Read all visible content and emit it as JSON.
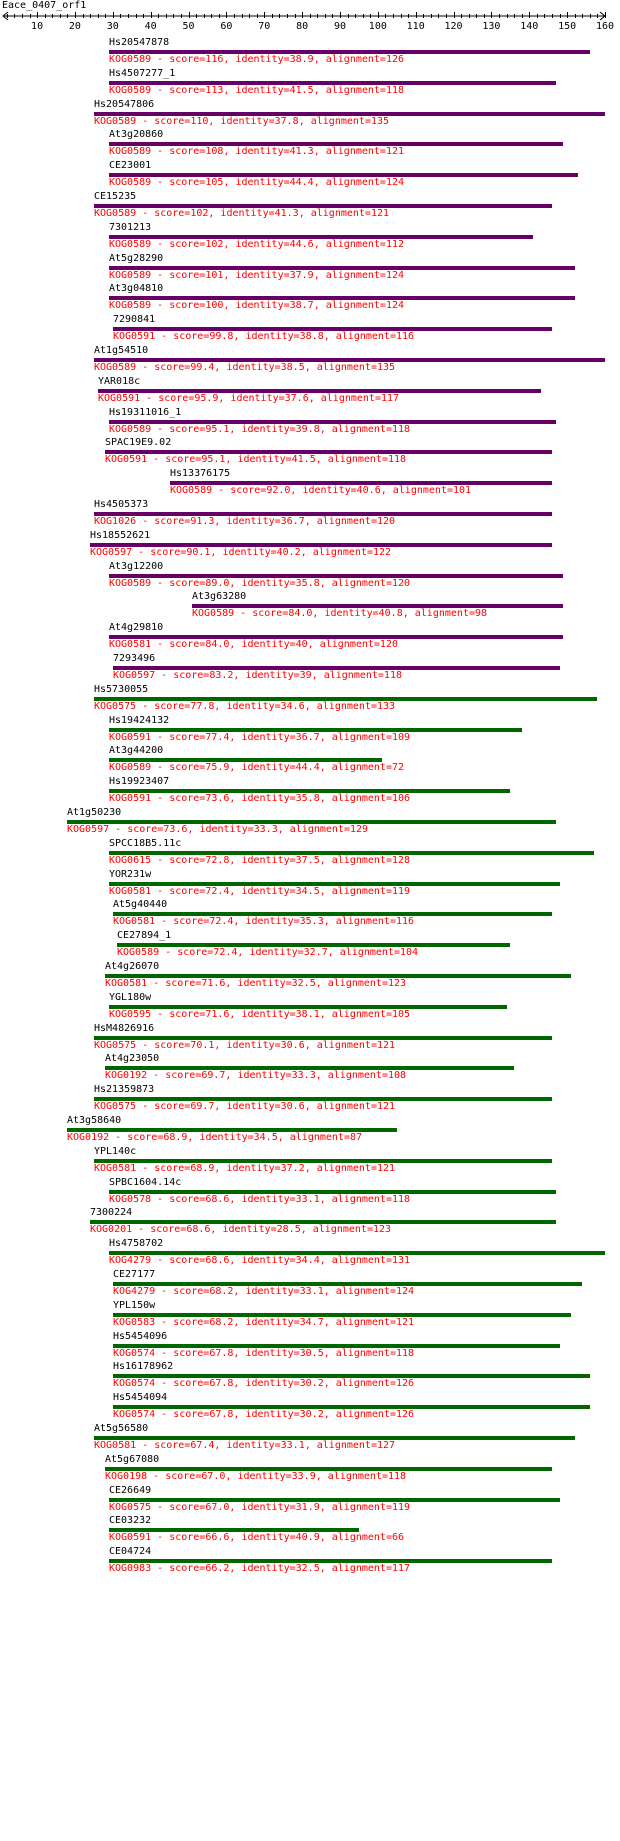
{
  "title": "Eace_0407_orf1",
  "axis": {
    "min": 1,
    "max": 160,
    "tick_labels": [
      "10",
      "20",
      "30",
      "40",
      "50",
      "60",
      "70",
      "80",
      "90",
      "100",
      "110",
      "120",
      "130",
      "140",
      "150",
      "160"
    ]
  },
  "colors": {
    "purple_bar": "#660066",
    "green_bar": "#006600",
    "info_text": "#ff0000",
    "name_text": "#000000"
  },
  "hits": [
    {
      "name": "Hs20547878",
      "start": 29,
      "end": 156,
      "color": "purple",
      "info": "KOG0589 - score=116, identity=38.9, alignment=126"
    },
    {
      "name": "Hs4507277_1",
      "start": 29,
      "end": 147,
      "color": "purple",
      "info": "KOG0589 - score=113, identity=41.5, alignment=118"
    },
    {
      "name": "Hs20547806",
      "start": 25,
      "end": 160,
      "color": "purple",
      "info": "KOG0589 - score=110, identity=37.8, alignment=135"
    },
    {
      "name": "At3g20860",
      "start": 29,
      "end": 149,
      "color": "purple",
      "info": "KOG0589 - score=108, identity=41.3, alignment=121"
    },
    {
      "name": "CE23001",
      "start": 29,
      "end": 153,
      "color": "purple",
      "info": "KOG0589 - score=105, identity=44.4, alignment=124"
    },
    {
      "name": "CE15235",
      "start": 25,
      "end": 146,
      "color": "purple",
      "info": "KOG0589 - score=102, identity=41.3, alignment=121"
    },
    {
      "name": "7301213",
      "start": 29,
      "end": 141,
      "color": "purple",
      "info": "KOG0589 - score=102, identity=44.6, alignment=112"
    },
    {
      "name": "At5g28290",
      "start": 29,
      "end": 152,
      "color": "purple",
      "info": "KOG0589 - score=101, identity=37.9, alignment=124"
    },
    {
      "name": "At3g04810",
      "start": 29,
      "end": 152,
      "color": "purple",
      "info": "KOG0589 - score=100, identity=38.7, alignment=124"
    },
    {
      "name": "7290841",
      "start": 30,
      "end": 146,
      "color": "purple",
      "info": "KOG0591 - score=99.8, identity=38.8, alignment=116"
    },
    {
      "name": "At1g54510",
      "start": 25,
      "end": 160,
      "color": "purple",
      "info": "KOG0589 - score=99.4, identity=38.5, alignment=135"
    },
    {
      "name": "YAR018c",
      "start": 26,
      "end": 143,
      "color": "purple",
      "info": "KOG0591 - score=95.9, identity=37.6, alignment=117"
    },
    {
      "name": "Hs19311016_1",
      "start": 29,
      "end": 147,
      "color": "purple",
      "info": "KOG0589 - score=95.1, identity=39.8, alignment=118"
    },
    {
      "name": "SPAC19E9.02",
      "start": 28,
      "end": 146,
      "color": "purple",
      "info": "KOG0591 - score=95.1, identity=41.5, alignment=118"
    },
    {
      "name": "Hs13376175",
      "start": 45,
      "end": 146,
      "color": "purple",
      "info": "KOG0589 - score=92.0, identity=40.6, alignment=101"
    },
    {
      "name": "Hs4505373",
      "start": 25,
      "end": 146,
      "color": "purple",
      "info": "KOG1026 - score=91.3, identity=36.7, alignment=120"
    },
    {
      "name": "Hs18552621",
      "start": 24,
      "end": 146,
      "color": "purple",
      "info": "KOG0597 - score=90.1, identity=40.2, alignment=122"
    },
    {
      "name": "At3g12200",
      "start": 29,
      "end": 149,
      "color": "purple",
      "info": "KOG0589 - score=89.0, identity=35.8, alignment=120"
    },
    {
      "name": "At3g63280",
      "start": 51,
      "end": 149,
      "color": "purple",
      "info": "KOG0589 - score=84.0, identity=40.8, alignment=98"
    },
    {
      "name": "At4g29810",
      "start": 29,
      "end": 149,
      "color": "purple",
      "info": "KOG0581 - score=84.0, identity=40, alignment=120"
    },
    {
      "name": "7293496",
      "start": 30,
      "end": 148,
      "color": "purple",
      "info": "KOG0597 - score=83.2, identity=39, alignment=118"
    },
    {
      "name": "Hs5730055",
      "start": 25,
      "end": 158,
      "color": "green",
      "info": "KOG0575 - score=77.8, identity=34.6, alignment=133"
    },
    {
      "name": "Hs19424132",
      "start": 29,
      "end": 138,
      "color": "green",
      "info": "KOG0591 - score=77.4, identity=36.7, alignment=109"
    },
    {
      "name": "At3g44200",
      "start": 29,
      "end": 101,
      "color": "green",
      "info": "KOG0589 - score=75.9, identity=44.4, alignment=72"
    },
    {
      "name": "Hs19923407",
      "start": 29,
      "end": 135,
      "color": "green",
      "info": "KOG0591 - score=73.6, identity=35.8, alignment=106"
    },
    {
      "name": "At1g50230",
      "start": 18,
      "end": 147,
      "color": "green",
      "info": "KOG0597 - score=73.6, identity=33.3, alignment=129"
    },
    {
      "name": "SPCC18B5.11c",
      "start": 29,
      "end": 157,
      "color": "green",
      "info": "KOG0615 - score=72.8, identity=37.5, alignment=128"
    },
    {
      "name": "YOR231w",
      "start": 29,
      "end": 148,
      "color": "green",
      "info": "KOG0581 - score=72.4, identity=34.5, alignment=119"
    },
    {
      "name": "At5g40440",
      "start": 30,
      "end": 146,
      "color": "green",
      "info": "KOG0581 - score=72.4, identity=35.3, alignment=116"
    },
    {
      "name": "CE27894_1",
      "start": 31,
      "end": 135,
      "color": "green",
      "info": "KOG0589 - score=72.4, identity=32.7, alignment=104"
    },
    {
      "name": "At4g26070",
      "start": 28,
      "end": 151,
      "color": "green",
      "info": "KOG0581 - score=71.6, identity=32.5, alignment=123"
    },
    {
      "name": "YGL180w",
      "start": 29,
      "end": 134,
      "color": "green",
      "info": "KOG0595 - score=71.6, identity=38.1, alignment=105"
    },
    {
      "name": "HsM4826916",
      "start": 25,
      "end": 146,
      "color": "green",
      "info": "KOG0575 - score=70.1, identity=30.6, alignment=121"
    },
    {
      "name": "At4g23050",
      "start": 28,
      "end": 136,
      "color": "green",
      "info": "KOG0192 - score=69.7, identity=33.3, alignment=108"
    },
    {
      "name": "Hs21359873",
      "start": 25,
      "end": 146,
      "color": "green",
      "info": "KOG0575 - score=69.7, identity=30.6, alignment=121"
    },
    {
      "name": "At3g58640",
      "start": 18,
      "end": 105,
      "color": "green",
      "info": "KOG0192 - score=68.9, identity=34.5, alignment=87"
    },
    {
      "name": "YPL140c",
      "start": 25,
      "end": 146,
      "color": "green",
      "info": "KOG0581 - score=68.9, identity=37.2, alignment=121"
    },
    {
      "name": "SPBC1604.14c",
      "start": 29,
      "end": 147,
      "color": "green",
      "info": "KOG0578 - score=68.6, identity=33.1, alignment=118"
    },
    {
      "name": "7300224",
      "start": 24,
      "end": 147,
      "color": "green",
      "info": "KOG0201 - score=68.6, identity=28.5, alignment=123"
    },
    {
      "name": "Hs4758702",
      "start": 29,
      "end": 160,
      "color": "green",
      "info": "KOG4279 - score=68.6, identity=34.4, alignment=131"
    },
    {
      "name": "CE27177",
      "start": 30,
      "end": 154,
      "color": "green",
      "info": "KOG4279 - score=68.2, identity=33.1, alignment=124"
    },
    {
      "name": "YPL150w",
      "start": 30,
      "end": 151,
      "color": "green",
      "info": "KOG0583 - score=68.2, identity=34.7, alignment=121"
    },
    {
      "name": "Hs5454096",
      "start": 30,
      "end": 148,
      "color": "green",
      "info": "KOG0574 - score=67.8, identity=30.5, alignment=118"
    },
    {
      "name": "Hs16178962",
      "start": 30,
      "end": 156,
      "color": "green",
      "info": "KOG0574 - score=67.8, identity=30.2, alignment=126"
    },
    {
      "name": "Hs5454094",
      "start": 30,
      "end": 156,
      "color": "green",
      "info": "KOG0574 - score=67.8, identity=30.2, alignment=126"
    },
    {
      "name": "At5g56580",
      "start": 25,
      "end": 152,
      "color": "green",
      "info": "KOG0581 - score=67.4, identity=33.1, alignment=127"
    },
    {
      "name": "At5g67080",
      "start": 28,
      "end": 146,
      "color": "green",
      "info": "KOG0198 - score=67.0, identity=33.9, alignment=118"
    },
    {
      "name": "CE26649",
      "start": 29,
      "end": 148,
      "color": "green",
      "info": "KOG0575 - score=67.0, identity=31.9, alignment=119"
    },
    {
      "name": "CE03232",
      "start": 29,
      "end": 95,
      "color": "green",
      "info": "KOG0591 - score=66.6, identity=40.9, alignment=66"
    },
    {
      "name": "CE04724",
      "start": 29,
      "end": 146,
      "color": "green",
      "info": "KOG0983 - score=66.2, identity=32.5, alignment=117"
    }
  ]
}
